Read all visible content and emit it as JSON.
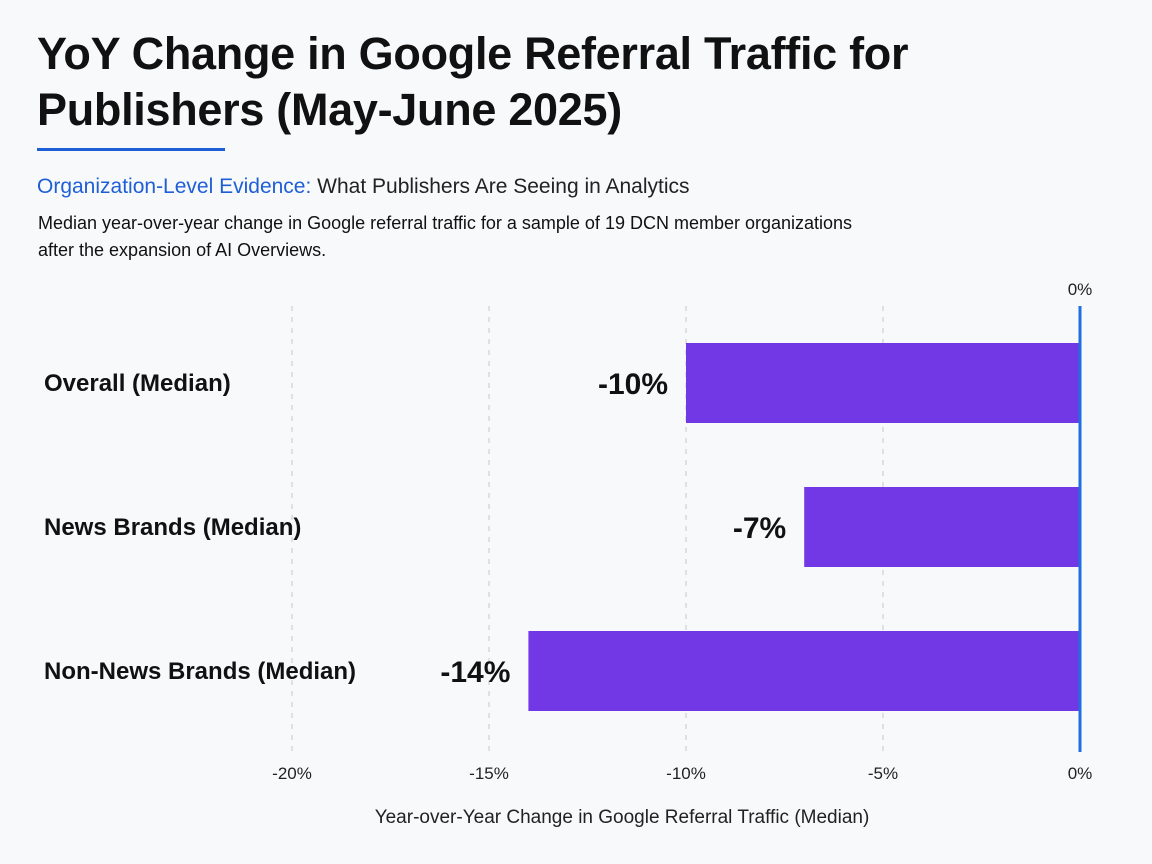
{
  "header": {
    "title": "YoY Change in Google Referral Traffic for Publishers (May-June 2025)",
    "subtitle_accent": "Organization-Level Evidence:",
    "subtitle_rest": " What Publishers Are Seeing in Analytics",
    "description": "Median year-over-year change in Google referral traffic for a sample of 19 DCN member organizations after the expansion of AI Overviews."
  },
  "colors": {
    "bar": "#7338e6",
    "accent": "#1f5fd6",
    "zero_line": "#1f6fe0",
    "grid": "#c8c8c8"
  },
  "chart_data": {
    "type": "bar",
    "orientation": "horizontal",
    "categories": [
      "Overall (Median)",
      "News Brands (Median)",
      "Non-News Brands (Median)"
    ],
    "values": [
      -10,
      -7,
      -14
    ],
    "value_labels": [
      "-10%",
      "-7%",
      "-14%"
    ],
    "xlabel": "Year-over-Year Change in Google Referral Traffic (Median)",
    "xlim": [
      -20,
      0
    ],
    "ticks": [
      -20,
      -15,
      -10,
      -5,
      0
    ],
    "tick_labels": [
      "-20%",
      "-15%",
      "-10%",
      "-5%",
      "0%"
    ],
    "zero_line_label": "0%",
    "grid": "vertical-dashed"
  }
}
